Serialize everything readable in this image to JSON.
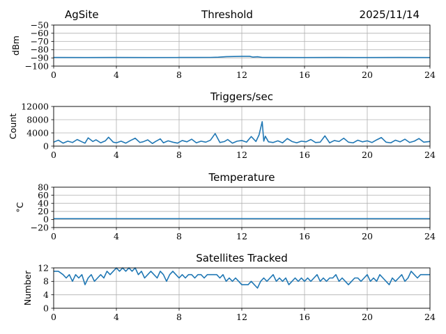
{
  "header": {
    "left": "AgSite",
    "center": "Threshold",
    "right": "2025/11/14"
  },
  "colors": {
    "line": "#1f77b4",
    "grid": "#b0b0b0",
    "axis": "#000000"
  },
  "chart_data": [
    {
      "type": "line",
      "title": "",
      "ylabel": "dBm",
      "xlim": [
        0,
        24
      ],
      "ylim": [
        -100,
        -50
      ],
      "xticks": [
        "0",
        "4",
        "8",
        "12",
        "16",
        "20",
        "24"
      ],
      "yticks": [
        "−50",
        "−60",
        "−70",
        "−80",
        "−90",
        "−100"
      ],
      "ytick_values": [
        -50,
        -60,
        -70,
        -80,
        -90,
        -100
      ],
      "grid": true,
      "series": [
        {
          "x": [
            0,
            2,
            4,
            6,
            8,
            9,
            10,
            10.5,
            11,
            11.5,
            12,
            12.5,
            12.7,
            13,
            13.3,
            14,
            16,
            18,
            20,
            22,
            24
          ],
          "y": [
            -89.5,
            -89.6,
            -89.5,
            -89.6,
            -89.5,
            -89.5,
            -89.4,
            -89.1,
            -88.5,
            -88.3,
            -88.1,
            -88.1,
            -89.0,
            -88.6,
            -89.4,
            -89.5,
            -89.6,
            -89.5,
            -89.6,
            -89.5,
            -89.6
          ]
        }
      ]
    },
    {
      "type": "line",
      "title": "Triggers/sec",
      "ylabel": "Count",
      "xlim": [
        0,
        24
      ],
      "ylim": [
        0,
        12000
      ],
      "xticks": [
        "0",
        "4",
        "8",
        "12",
        "16",
        "20",
        "24"
      ],
      "yticks": [
        "0",
        "4000",
        "8000",
        "12000"
      ],
      "ytick_values": [
        0,
        4000,
        8000,
        12000
      ],
      "grid": true,
      "series": [
        {
          "x": [
            0,
            0.3,
            0.6,
            0.9,
            1.2,
            1.5,
            1.8,
            2.0,
            2.2,
            2.5,
            2.7,
            3.0,
            3.3,
            3.5,
            3.8,
            4.0,
            4.3,
            4.6,
            4.9,
            5.2,
            5.5,
            5.7,
            6.0,
            6.3,
            6.5,
            6.8,
            7.0,
            7.3,
            7.6,
            7.9,
            8.2,
            8.5,
            8.8,
            9.1,
            9.4,
            9.7,
            10.0,
            10.3,
            10.6,
            10.9,
            11.1,
            11.4,
            11.7,
            12.0,
            12.3,
            12.6,
            12.9,
            13.1,
            13.3,
            13.4,
            13.5,
            13.7,
            14.0,
            14.3,
            14.6,
            14.9,
            15.2,
            15.5,
            15.8,
            16.1,
            16.4,
            16.7,
            17.0,
            17.3,
            17.6,
            17.9,
            18.2,
            18.5,
            18.8,
            19.1,
            19.4,
            19.7,
            20.0,
            20.3,
            20.6,
            20.9,
            21.2,
            21.5,
            21.8,
            22.1,
            22.4,
            22.7,
            23.0,
            23.3,
            23.6,
            24.0
          ],
          "y": [
            1200,
            1800,
            900,
            1500,
            1100,
            2000,
            1300,
            900,
            2500,
            1400,
            1900,
            1000,
            1600,
            2700,
            1200,
            1000,
            1500,
            900,
            1700,
            2400,
            1100,
            1300,
            1900,
            800,
            1400,
            2200,
            1000,
            1600,
            1200,
            900,
            1700,
            1300,
            2100,
            1000,
            1500,
            1200,
            1800,
            3800,
            1100,
            1400,
            2000,
            900,
            1500,
            1700,
            1200,
            2900,
            1400,
            3400,
            7400,
            1500,
            3000,
            1300,
            1100,
            1600,
            1000,
            2300,
            1400,
            1000,
            1500,
            1300,
            2000,
            1100,
            1200,
            3100,
            1000,
            1700,
            1400,
            2400,
            1200,
            1000,
            1800,
            1300,
            1600,
            1100,
            1900,
            2600,
            1200,
            1000,
            1800,
            1300,
            2100,
            1100,
            1500,
            2300,
            1200,
            1400
          ]
        }
      ]
    },
    {
      "type": "line",
      "title": "Temperature",
      "ylabel": "°C",
      "xlim": [
        0,
        24
      ],
      "ylim": [
        -20,
        80
      ],
      "xticks": [
        "0",
        "4",
        "8",
        "12",
        "16",
        "20",
        "24"
      ],
      "yticks": [
        "−20",
        "0",
        "20",
        "40",
        "60",
        "80"
      ],
      "ytick_values": [
        -20,
        0,
        20,
        40,
        60,
        80
      ],
      "grid": true,
      "series": [
        {
          "x": [
            0,
            6,
            12,
            18,
            24
          ],
          "y": [
            2,
            2,
            2,
            2,
            2
          ]
        }
      ]
    },
    {
      "type": "line",
      "title": "Satellites Tracked",
      "ylabel": "Number",
      "xlim": [
        0,
        24
      ],
      "ylim": [
        0,
        12
      ],
      "xticks": [
        "0",
        "4",
        "8",
        "12",
        "16",
        "20",
        "24"
      ],
      "yticks": [
        "0",
        "4",
        "8",
        "12"
      ],
      "ytick_values": [
        0,
        4,
        8,
        12
      ],
      "grid": true,
      "series": [
        {
          "x": [
            0,
            0.3,
            0.6,
            0.8,
            1.0,
            1.2,
            1.4,
            1.6,
            1.8,
            2.0,
            2.2,
            2.4,
            2.6,
            2.8,
            3.0,
            3.2,
            3.4,
            3.6,
            3.8,
            4.0,
            4.2,
            4.4,
            4.6,
            4.8,
            5.0,
            5.2,
            5.4,
            5.6,
            5.8,
            6.0,
            6.2,
            6.4,
            6.6,
            6.8,
            7.0,
            7.2,
            7.4,
            7.6,
            7.8,
            8.0,
            8.2,
            8.4,
            8.6,
            8.8,
            9.0,
            9.2,
            9.4,
            9.6,
            9.8,
            10.0,
            10.2,
            10.4,
            10.6,
            10.8,
            11.0,
            11.2,
            11.4,
            11.6,
            11.8,
            12.0,
            12.2,
            12.4,
            12.6,
            12.8,
            13.0,
            13.2,
            13.4,
            13.6,
            13.8,
            14.0,
            14.2,
            14.4,
            14.6,
            14.8,
            15.0,
            15.2,
            15.4,
            15.6,
            15.8,
            16.0,
            16.2,
            16.4,
            16.6,
            16.8,
            17.0,
            17.2,
            17.4,
            17.6,
            17.8,
            18.0,
            18.2,
            18.4,
            18.6,
            18.8,
            19.0,
            19.2,
            19.4,
            19.6,
            19.8,
            20.0,
            20.2,
            20.4,
            20.6,
            20.8,
            21.0,
            21.2,
            21.4,
            21.6,
            21.8,
            22.0,
            22.2,
            22.4,
            22.6,
            22.8,
            23.0,
            23.2,
            23.4,
            23.6,
            23.8,
            24.0
          ],
          "y": [
            11,
            11,
            10,
            9,
            10,
            8,
            10,
            9,
            10,
            7,
            9,
            10,
            8,
            9,
            10,
            9,
            11,
            10,
            11,
            12,
            11,
            12,
            11,
            12,
            11,
            12,
            10,
            11,
            9,
            10,
            11,
            10,
            9,
            11,
            10,
            8,
            10,
            11,
            10,
            9,
            10,
            9,
            10,
            10,
            9,
            10,
            10,
            9,
            10,
            10,
            10,
            10,
            9,
            10,
            8,
            9,
            8,
            9,
            8,
            7,
            7,
            7,
            8,
            7,
            6,
            8,
            9,
            8,
            9,
            10,
            8,
            9,
            8,
            9,
            7,
            8,
            9,
            8,
            9,
            8,
            9,
            8,
            9,
            10,
            8,
            9,
            8,
            9,
            9,
            10,
            8,
            9,
            8,
            7,
            8,
            9,
            9,
            8,
            9,
            10,
            8,
            9,
            8,
            10,
            9,
            8,
            7,
            9,
            8,
            9,
            10,
            8,
            9,
            11,
            10,
            9,
            10,
            10,
            10,
            10
          ]
        }
      ]
    }
  ]
}
